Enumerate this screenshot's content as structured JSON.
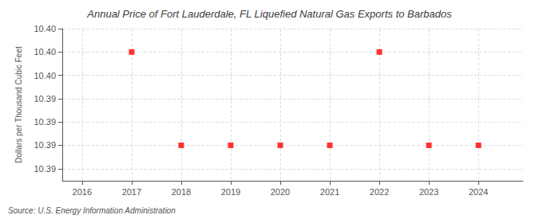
{
  "chart_data": {
    "type": "scatter",
    "title": "Annual Price of Fort Lauderdale, FL Liquefied Natural Gas Exports to Barbados",
    "ylabel": "Dollars per Thousand Cubic Feet",
    "source": "Source: U.S. Energy Information Administration",
    "x": [
      2017,
      2018,
      2019,
      2020,
      2021,
      2022,
      2023,
      2024
    ],
    "values": [
      10.4,
      10.39,
      10.39,
      10.39,
      10.39,
      10.4,
      10.39,
      10.39
    ],
    "color": "#ff0000",
    "marker": "square",
    "xlim": [
      2015.6,
      2024.9
    ],
    "xticks": [
      2016,
      2017,
      2018,
      2019,
      2020,
      2021,
      2022,
      2023,
      2024
    ],
    "ylim": [
      10.3862,
      10.4025
    ],
    "yticks": [
      {
        "value": 10.3875,
        "label": "10.39"
      },
      {
        "value": 10.39,
        "label": "10.39"
      },
      {
        "value": 10.3925,
        "label": "10.39"
      },
      {
        "value": 10.395,
        "label": "10.39"
      },
      {
        "value": 10.3975,
        "label": "10.40"
      },
      {
        "value": 10.4,
        "label": "10.40"
      },
      {
        "value": 10.4025,
        "label": "10.40"
      }
    ],
    "grid": true
  }
}
